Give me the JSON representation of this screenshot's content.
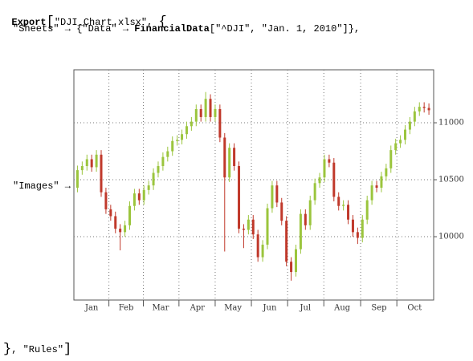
{
  "code": {
    "line0": [
      "Export",
      "[",
      "\"DJI_Chart.xlsx\"",
      ", ",
      "{"
    ],
    "line1": [
      "\"Sheets\"",
      " → ",
      "{",
      "\"Data\"",
      " → ",
      "FinancialData",
      "[",
      "\"^DJI\"",
      ", ",
      "\"Jan. 1, 2010\"",
      "]",
      "}",
      ","
    ],
    "line2": [
      "\"Images\"",
      " →"
    ],
    "line3": [
      "}",
      ", ",
      "\"Rules\"",
      "]"
    ]
  },
  "chart_data": {
    "type": "ohlc",
    "up_color": "#9bc53d",
    "down_color": "#c0392b",
    "x": [
      4,
      8,
      12,
      16,
      20,
      24,
      28,
      32,
      36,
      40,
      44,
      48,
      52,
      56,
      60,
      64,
      68,
      72,
      76,
      80,
      84,
      88,
      92,
      96,
      100,
      104,
      108,
      112,
      116,
      120,
      124,
      128,
      132,
      136,
      140,
      144,
      148,
      152,
      156,
      160,
      164,
      168,
      172,
      176,
      180,
      184,
      188,
      192,
      196,
      200,
      204,
      208,
      212,
      216,
      220,
      224,
      228,
      232,
      236,
      240,
      244,
      248,
      252,
      256,
      260,
      264,
      268,
      272,
      276,
      280,
      284,
      288,
      292,
      296,
      300
    ],
    "open": [
      10430,
      10584,
      10620,
      10680,
      10610,
      10720,
      10390,
      10240,
      10180,
      10070,
      10040,
      10100,
      10270,
      10380,
      10320,
      10410,
      10450,
      10560,
      10620,
      10700,
      10750,
      10840,
      10850,
      10900,
      10970,
      11010,
      11120,
      11050,
      11210,
      11050,
      11120,
      10870,
      10520,
      10780,
      10620,
      10070,
      10060,
      10150,
      10020,
      9820,
      9930,
      10250,
      10450,
      10300,
      10140,
      9780,
      9690,
      9890,
      10200,
      10100,
      10320,
      10470,
      10520,
      10680,
      10650,
      10350,
      10270,
      10280,
      10150,
      10040,
      9990,
      10150,
      10320,
      10450,
      10430,
      10530,
      10600,
      10760,
      10820,
      10850,
      10940,
      11010,
      11100,
      11140,
      11130
    ],
    "high": [
      10624,
      10660,
      10720,
      10720,
      10760,
      10760,
      10430,
      10280,
      10220,
      10110,
      10140,
      10310,
      10420,
      10420,
      10450,
      10490,
      10600,
      10660,
      10740,
      10790,
      10880,
      10890,
      10940,
      11010,
      11050,
      11160,
      11160,
      11270,
      11250,
      11160,
      11160,
      10910,
      10820,
      10820,
      10660,
      10110,
      10190,
      10190,
      10060,
      9970,
      10290,
      10490,
      10490,
      10340,
      10180,
      9820,
      9930,
      10240,
      10240,
      10360,
      10510,
      10560,
      10720,
      10720,
      10690,
      10390,
      10320,
      10320,
      10190,
      10080,
      10190,
      10360,
      10490,
      10490,
      10570,
      10640,
      10800,
      10860,
      10890,
      10980,
      11050,
      11140,
      11180,
      11180,
      11170
    ],
    "low": [
      10390,
      10544,
      10580,
      10570,
      10570,
      10350,
      10200,
      10140,
      10030,
      9880,
      10000,
      10060,
      10230,
      10280,
      10280,
      10370,
      10410,
      10520,
      10580,
      10660,
      10710,
      10800,
      10810,
      10860,
      10930,
      10970,
      11010,
      11010,
      11010,
      11010,
      10830,
      9870,
      10480,
      10580,
      10030,
      9900,
      10020,
      9980,
      9780,
      9780,
      9890,
      10210,
      10260,
      10100,
      9740,
      9614,
      9650,
      9850,
      10060,
      10060,
      10280,
      10430,
      10480,
      10610,
      10310,
      10230,
      10230,
      10110,
      10000,
      9936,
      9950,
      10110,
      10280,
      10390,
      10390,
      10490,
      10560,
      10720,
      10780,
      10810,
      10900,
      10970,
      11060,
      11090,
      11070
    ],
    "close": [
      10584,
      10620,
      10680,
      10610,
      10720,
      10390,
      10240,
      10180,
      10070,
      10040,
      10100,
      10270,
      10380,
      10320,
      10410,
      10450,
      10560,
      10620,
      10700,
      10750,
      10840,
      10850,
      10900,
      10970,
      11010,
      11120,
      11050,
      11210,
      11050,
      11120,
      10870,
      10520,
      10780,
      10620,
      10070,
      10060,
      10150,
      10020,
      9820,
      9930,
      10250,
      10450,
      10300,
      10140,
      9780,
      9690,
      9890,
      10200,
      10100,
      10320,
      10470,
      10520,
      10680,
      10650,
      10350,
      10270,
      10280,
      10150,
      10040,
      9990,
      10150,
      10320,
      10450,
      10430,
      10530,
      10600,
      10760,
      10820,
      10850,
      10940,
      11010,
      11100,
      11140,
      11130,
      11110
    ],
    "xlim": [
      1,
      304
    ],
    "xticks": [
      {
        "value": 16,
        "label": "Jan"
      },
      {
        "value": 45,
        "label": "Feb"
      },
      {
        "value": 74,
        "label": "Mar"
      },
      {
        "value": 105,
        "label": "Apr"
      },
      {
        "value": 135,
        "label": "May"
      },
      {
        "value": 166,
        "label": "Jun"
      },
      {
        "value": 196,
        "label": "Jul"
      },
      {
        "value": 227,
        "label": "Aug"
      },
      {
        "value": 258,
        "label": "Sep"
      },
      {
        "value": 288,
        "label": "Oct"
      }
    ],
    "ylim": [
      9444,
      11465
    ],
    "yticks": [
      10000,
      10500,
      11000
    ],
    "grid": true
  }
}
